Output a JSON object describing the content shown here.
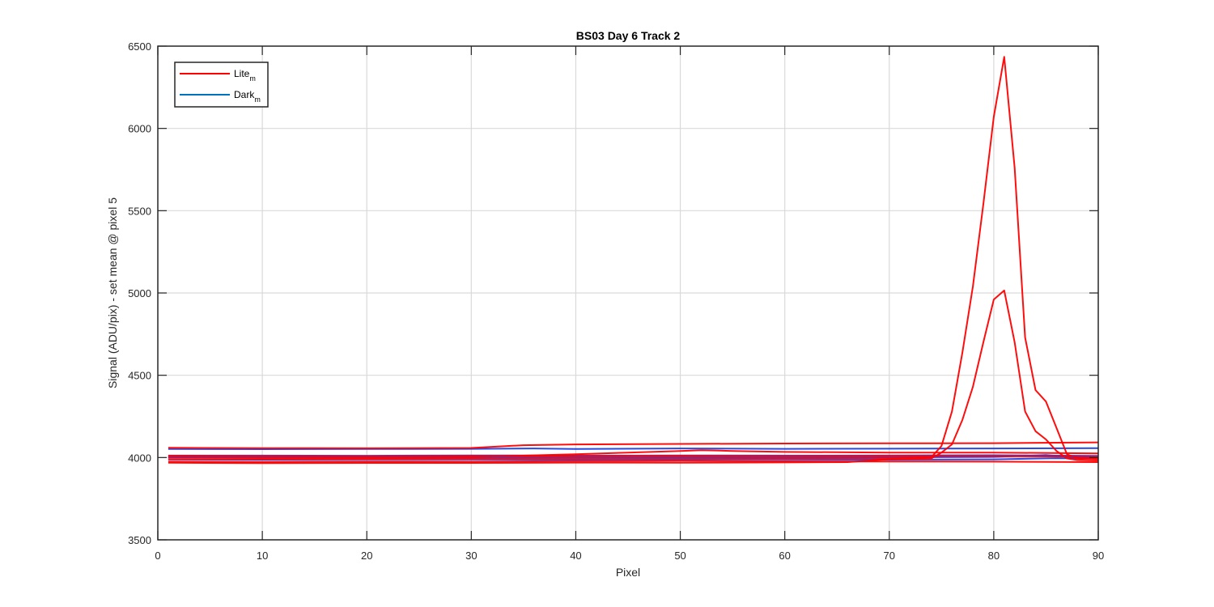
{
  "chart_data": {
    "type": "line",
    "title": "BS03 Day 6 Track 2",
    "xlabel": "Pixel",
    "ylabel": "Signal (ADU/pix) - set mean @ pixel 5",
    "xlim": [
      0,
      90
    ],
    "ylim": [
      3500,
      6500
    ],
    "xticks": [
      0,
      10,
      20,
      30,
      40,
      50,
      60,
      70,
      80,
      90
    ],
    "yticks": [
      3500,
      4000,
      4500,
      5000,
      5500,
      6000,
      6500
    ],
    "grid": true,
    "legend": {
      "placement": "top-left",
      "entries": [
        {
          "label": "Lite",
          "subscript": "m",
          "color": "#ff0000"
        },
        {
          "label": "Dark",
          "subscript": "m",
          "color": "#0072bd"
        }
      ]
    },
    "series": [
      {
        "color": "#ff0000",
        "points": [
          [
            1,
            4059
          ],
          [
            10,
            4057
          ],
          [
            20,
            4056
          ],
          [
            30,
            4058
          ],
          [
            35,
            4075
          ],
          [
            40,
            4080
          ],
          [
            50,
            4083
          ],
          [
            60,
            4085
          ],
          [
            70,
            4086
          ],
          [
            80,
            4087
          ],
          [
            90,
            4092
          ]
        ]
      },
      {
        "color": "#ff0000",
        "points": [
          [
            1,
            4005
          ],
          [
            10,
            4004
          ],
          [
            20,
            4003
          ],
          [
            30,
            4004
          ],
          [
            40,
            4020
          ],
          [
            45,
            4030
          ],
          [
            50,
            4040
          ],
          [
            52,
            4045
          ],
          [
            55,
            4040
          ],
          [
            60,
            4034
          ],
          [
            70,
            4030
          ],
          [
            80,
            4030
          ],
          [
            90,
            4025
          ]
        ]
      },
      {
        "color": "#ff0000",
        "points": [
          [
            1,
            3975
          ],
          [
            10,
            3974
          ],
          [
            20,
            3976
          ],
          [
            30,
            3975
          ],
          [
            40,
            3978
          ],
          [
            50,
            3980
          ],
          [
            60,
            3977
          ],
          [
            70,
            3976
          ],
          [
            80,
            3975
          ],
          [
            90,
            3972
          ]
        ]
      },
      {
        "color": "#ff0000",
        "points": [
          [
            1,
            3968
          ],
          [
            10,
            3966
          ],
          [
            20,
            3967
          ],
          [
            30,
            3967
          ],
          [
            40,
            3969
          ],
          [
            50,
            3968
          ],
          [
            60,
            3970
          ],
          [
            66,
            3972
          ],
          [
            70,
            3990
          ],
          [
            74,
            3994
          ],
          [
            75,
            4030
          ],
          [
            76,
            4080
          ],
          [
            77,
            4230
          ],
          [
            78,
            4430
          ],
          [
            79,
            4700
          ],
          [
            80,
            4960
          ],
          [
            81,
            5015
          ],
          [
            82,
            4700
          ],
          [
            83,
            4280
          ],
          [
            84,
            4160
          ],
          [
            85,
            4110
          ],
          [
            86,
            4040
          ],
          [
            87,
            3995
          ],
          [
            88,
            3985
          ],
          [
            90,
            3982
          ]
        ]
      },
      {
        "color": "#ff0000",
        "points": [
          [
            1,
            3990
          ],
          [
            10,
            3992
          ],
          [
            20,
            3992
          ],
          [
            30,
            3994
          ],
          [
            40,
            3995
          ],
          [
            50,
            3996
          ],
          [
            60,
            3995
          ],
          [
            70,
            3996
          ],
          [
            74,
            4000
          ],
          [
            75,
            4070
          ],
          [
            76,
            4280
          ],
          [
            77,
            4640
          ],
          [
            78,
            5040
          ],
          [
            79,
            5540
          ],
          [
            80,
            6070
          ],
          [
            81,
            6435
          ],
          [
            82,
            5760
          ],
          [
            83,
            4730
          ],
          [
            84,
            4410
          ],
          [
            85,
            4340
          ],
          [
            86,
            4180
          ],
          [
            87,
            4020
          ],
          [
            88,
            3995
          ],
          [
            90,
            3992
          ]
        ]
      },
      {
        "color": "#ff0000",
        "points": [
          [
            1,
            4010
          ],
          [
            10,
            4008
          ],
          [
            20,
            4007
          ],
          [
            30,
            4009
          ],
          [
            40,
            4008
          ],
          [
            50,
            4010
          ],
          [
            60,
            4008
          ],
          [
            70,
            4009
          ],
          [
            80,
            4008
          ],
          [
            90,
            4005
          ]
        ]
      },
      {
        "color": "#1f3fe0",
        "points": [
          [
            1,
            4052
          ],
          [
            10,
            4051
          ],
          [
            20,
            4052
          ],
          [
            30,
            4053
          ],
          [
            36,
            4055
          ],
          [
            40,
            4052
          ],
          [
            50,
            4055
          ],
          [
            60,
            4053
          ],
          [
            70,
            4054
          ],
          [
            80,
            4055
          ],
          [
            90,
            4057
          ]
        ]
      },
      {
        "color": "#1f3fe0",
        "points": [
          [
            1,
            4000
          ],
          [
            10,
            4000
          ],
          [
            20,
            4000
          ],
          [
            30,
            4001
          ],
          [
            40,
            4000
          ],
          [
            50,
            4002
          ],
          [
            60,
            4000
          ],
          [
            70,
            4001
          ],
          [
            80,
            4004
          ],
          [
            85,
            4015
          ],
          [
            88,
            4000
          ],
          [
            90,
            4002
          ]
        ]
      },
      {
        "color": "#1f3fe0",
        "points": [
          [
            1,
            3988
          ],
          [
            10,
            3987
          ],
          [
            20,
            3988
          ],
          [
            30,
            3988
          ],
          [
            40,
            3987
          ],
          [
            50,
            3989
          ],
          [
            60,
            3988
          ],
          [
            70,
            3987
          ],
          [
            80,
            3989
          ],
          [
            86,
            3996
          ],
          [
            90,
            3995
          ]
        ]
      },
      {
        "color": "#1f3fe0",
        "points": [
          [
            1,
            4012
          ],
          [
            10,
            4012
          ],
          [
            20,
            4011
          ],
          [
            30,
            4013
          ],
          [
            40,
            4012
          ],
          [
            50,
            4013
          ],
          [
            60,
            4012
          ],
          [
            70,
            4013
          ],
          [
            80,
            4014
          ],
          [
            90,
            4010
          ]
        ]
      }
    ]
  }
}
